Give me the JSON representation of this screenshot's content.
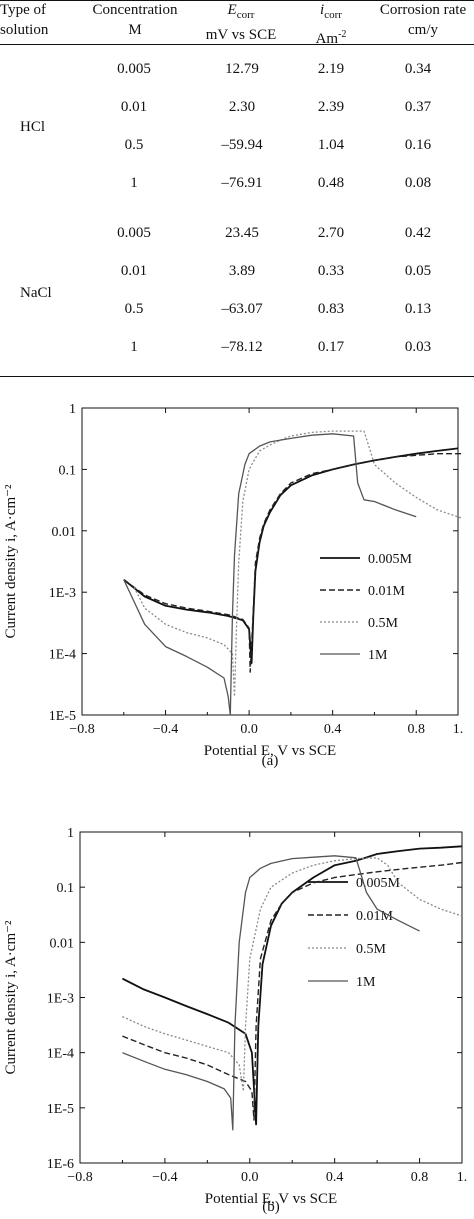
{
  "table": {
    "headers": {
      "type": [
        "Type of",
        "solution"
      ],
      "conc": [
        "Concentration",
        "M"
      ],
      "ecorr_sym": "E",
      "ecorr_sub": "corr",
      "ecorr_unit": "mV vs SCE",
      "icorr_sym": "i",
      "icorr_sub": "corr",
      "icorr_unit": "Am",
      "icorr_sup": "-2",
      "rate": [
        "Corrosion rate",
        "cm/y"
      ]
    },
    "groups": [
      {
        "solution": "HCl",
        "rows": [
          {
            "conc": "0.005",
            "ecorr": "12.79",
            "icorr": "2.19",
            "rate": "0.34"
          },
          {
            "conc": "0.01",
            "ecorr": "2.30",
            "icorr": "2.39",
            "rate": "0.37"
          },
          {
            "conc": "0.5",
            "ecorr": "–59.94",
            "icorr": "1.04",
            "rate": "0.16"
          },
          {
            "conc": "1",
            "ecorr": "–76.91",
            "icorr": "0.48",
            "rate": "0.08"
          }
        ]
      },
      {
        "solution": "NaCl",
        "rows": [
          {
            "conc": "0.005",
            "ecorr": "23.45",
            "icorr": "2.70",
            "rate": "0.42"
          },
          {
            "conc": "0.01",
            "ecorr": "3.89",
            "icorr": "0.33",
            "rate": "0.05"
          },
          {
            "conc": "0.5",
            "ecorr": "–63.07",
            "icorr": "0.83",
            "rate": "0.13"
          },
          {
            "conc": "1",
            "ecorr": "–78.12",
            "icorr": "0.17",
            "rate": "0.03"
          }
        ]
      }
    ]
  },
  "chart_data": [
    {
      "type": "line",
      "caption": "(a)",
      "xlabel": "Potential E, V vs SCE",
      "ylabel": "Current density i, A·cm⁻²",
      "xlim": [
        -0.8,
        1.0
      ],
      "ylim": [
        1e-05,
        1
      ],
      "yscale": "log",
      "xticks": [
        -0.8,
        -0.4,
        0.0,
        0.4,
        0.8,
        1.0
      ],
      "xtick_labels": [
        "−0.8",
        "−0.4",
        "0.0",
        "0.4",
        "0.8",
        "1."
      ],
      "yticks": [
        1e-05,
        0.0001,
        0.001,
        0.01,
        0.1,
        1
      ],
      "ytick_labels": [
        "1E-5",
        "1E-4",
        "1E-3",
        "0.01",
        "0.1",
        "1"
      ],
      "legend_position": "right",
      "series": [
        {
          "name": "0.005M",
          "style": "solid",
          "x": [
            -0.6,
            -0.5,
            -0.4,
            -0.3,
            -0.2,
            -0.1,
            -0.03,
            0.0,
            0.012,
            0.02,
            0.03,
            0.05,
            0.07,
            0.1,
            0.15,
            0.2,
            0.3,
            0.4,
            0.5,
            0.6,
            0.7,
            0.8,
            0.9,
            1.0
          ],
          "y": [
            0.0016,
            0.00085,
            0.0006,
            0.00052,
            0.00047,
            0.00041,
            0.00035,
            0.00025,
            7e-05,
            0.0004,
            0.0022,
            0.0065,
            0.012,
            0.02,
            0.038,
            0.055,
            0.08,
            0.1,
            0.12,
            0.14,
            0.16,
            0.18,
            0.2,
            0.22
          ]
        },
        {
          "name": "0.01M",
          "style": "dashed",
          "x": [
            -0.6,
            -0.5,
            -0.4,
            -0.3,
            -0.2,
            -0.1,
            -0.03,
            0.0,
            0.005,
            0.02,
            0.03,
            0.05,
            0.07,
            0.1,
            0.15,
            0.2,
            0.3,
            0.4,
            0.5,
            0.6,
            0.7,
            0.8,
            0.9,
            1.02
          ],
          "y": [
            0.0016,
            0.0009,
            0.00065,
            0.00055,
            0.00049,
            0.00043,
            0.00036,
            0.00026,
            5e-05,
            0.0005,
            0.003,
            0.0075,
            0.013,
            0.022,
            0.04,
            0.06,
            0.085,
            0.1,
            0.12,
            0.14,
            0.16,
            0.17,
            0.18,
            0.18
          ]
        },
        {
          "name": "0.5M",
          "style": "dotted",
          "x": [
            -0.55,
            -0.5,
            -0.4,
            -0.3,
            -0.2,
            -0.12,
            -0.08,
            -0.07,
            -0.06,
            -0.05,
            -0.03,
            0.0,
            0.05,
            0.1,
            0.15,
            0.2,
            0.3,
            0.4,
            0.55,
            0.58,
            0.6,
            0.7,
            0.8,
            0.9,
            1.02
          ],
          "y": [
            0.0012,
            0.00055,
            0.0003,
            0.00022,
            0.00018,
            0.00014,
            0.0001,
            2e-05,
            0.0003,
            0.003,
            0.03,
            0.1,
            0.2,
            0.25,
            0.3,
            0.35,
            0.4,
            0.42,
            0.42,
            0.2,
            0.12,
            0.06,
            0.035,
            0.022,
            0.016
          ]
        },
        {
          "name": "1M",
          "style": "dashdot",
          "x": [
            -0.6,
            -0.5,
            -0.4,
            -0.3,
            -0.2,
            -0.12,
            -0.1,
            -0.09,
            -0.08,
            -0.07,
            -0.05,
            -0.02,
            0.0,
            0.05,
            0.1,
            0.2,
            0.3,
            0.4,
            0.5,
            0.52,
            0.55,
            0.6,
            0.7,
            0.8
          ],
          "y": [
            0.0016,
            0.0003,
            0.00013,
            9e-05,
            6e-05,
            4e-05,
            2e-05,
            1e-05,
            0.0004,
            0.004,
            0.04,
            0.12,
            0.18,
            0.24,
            0.28,
            0.32,
            0.36,
            0.38,
            0.35,
            0.06,
            0.032,
            0.03,
            0.022,
            0.017
          ]
        }
      ]
    },
    {
      "type": "line",
      "caption": "(b)",
      "xlabel": "Potential E, V vs SCE",
      "ylabel": "Current density i, A·cm⁻²",
      "xlim": [
        -0.8,
        1.0
      ],
      "ylim": [
        1e-06,
        1
      ],
      "yscale": "log",
      "xticks": [
        -0.8,
        -0.4,
        0.0,
        0.4,
        0.8,
        1.0
      ],
      "xtick_labels": [
        "−0.8",
        "−0.4",
        "0.0",
        "0.4",
        "0.8",
        "1."
      ],
      "yticks": [
        1e-06,
        1e-05,
        0.0001,
        0.001,
        0.01,
        0.1,
        1
      ],
      "ytick_labels": [
        "1E-6",
        "1E-5",
        "1E-4",
        "1E-3",
        "0.01",
        "0.1",
        "1"
      ],
      "legend_position": "right",
      "series": [
        {
          "name": "0.005M",
          "style": "solid",
          "x": [
            -0.6,
            -0.5,
            -0.4,
            -0.3,
            -0.2,
            -0.1,
            -0.02,
            0.01,
            0.03,
            0.04,
            0.06,
            0.1,
            0.15,
            0.2,
            0.3,
            0.4,
            0.5,
            0.6,
            0.7,
            0.8,
            0.9,
            1.0
          ],
          "y": [
            0.0022,
            0.0014,
            0.001,
            0.0007,
            0.0005,
            0.00035,
            0.00022,
            0.0001,
            5e-06,
            0.0003,
            0.004,
            0.02,
            0.05,
            0.08,
            0.15,
            0.25,
            0.3,
            0.4,
            0.45,
            0.5,
            0.52,
            0.55
          ]
        },
        {
          "name": "0.01M",
          "style": "dashed",
          "x": [
            -0.6,
            -0.5,
            -0.4,
            -0.3,
            -0.2,
            -0.1,
            -0.02,
            0.01,
            0.02,
            0.03,
            0.05,
            0.1,
            0.15,
            0.2,
            0.3,
            0.4,
            0.5,
            0.6,
            0.7,
            0.8,
            0.9,
            1.0
          ],
          "y": [
            0.0002,
            0.00014,
            0.0001,
            8e-05,
            6e-05,
            4e-05,
            3e-05,
            2e-05,
            6e-06,
            0.0003,
            0.005,
            0.025,
            0.05,
            0.08,
            0.12,
            0.15,
            0.17,
            0.19,
            0.21,
            0.23,
            0.25,
            0.28
          ]
        },
        {
          "name": "0.5M",
          "style": "dotted",
          "x": [
            -0.6,
            -0.5,
            -0.4,
            -0.3,
            -0.2,
            -0.1,
            -0.05,
            -0.03,
            -0.02,
            0.0,
            0.05,
            0.1,
            0.2,
            0.3,
            0.4,
            0.5,
            0.6,
            0.65,
            0.7,
            0.8,
            0.9,
            1.0
          ],
          "y": [
            0.00045,
            0.0003,
            0.00022,
            0.00017,
            0.00013,
            0.0001,
            6e-05,
            2e-05,
            0.0003,
            0.005,
            0.04,
            0.1,
            0.18,
            0.25,
            0.3,
            0.33,
            0.34,
            0.25,
            0.12,
            0.06,
            0.04,
            0.03
          ]
        },
        {
          "name": "1M",
          "style": "dashdot",
          "x": [
            -0.6,
            -0.5,
            -0.4,
            -0.3,
            -0.2,
            -0.12,
            -0.09,
            -0.08,
            -0.07,
            -0.05,
            -0.02,
            0.0,
            0.05,
            0.1,
            0.2,
            0.3,
            0.4,
            0.5,
            0.55,
            0.6,
            0.7,
            0.8
          ],
          "y": [
            0.0001,
            7e-05,
            5e-05,
            4e-05,
            3e-05,
            2.2e-05,
            1.5e-05,
            4e-06,
            0.0003,
            0.01,
            0.08,
            0.15,
            0.22,
            0.27,
            0.33,
            0.35,
            0.37,
            0.34,
            0.08,
            0.04,
            0.025,
            0.016
          ]
        }
      ]
    }
  ]
}
